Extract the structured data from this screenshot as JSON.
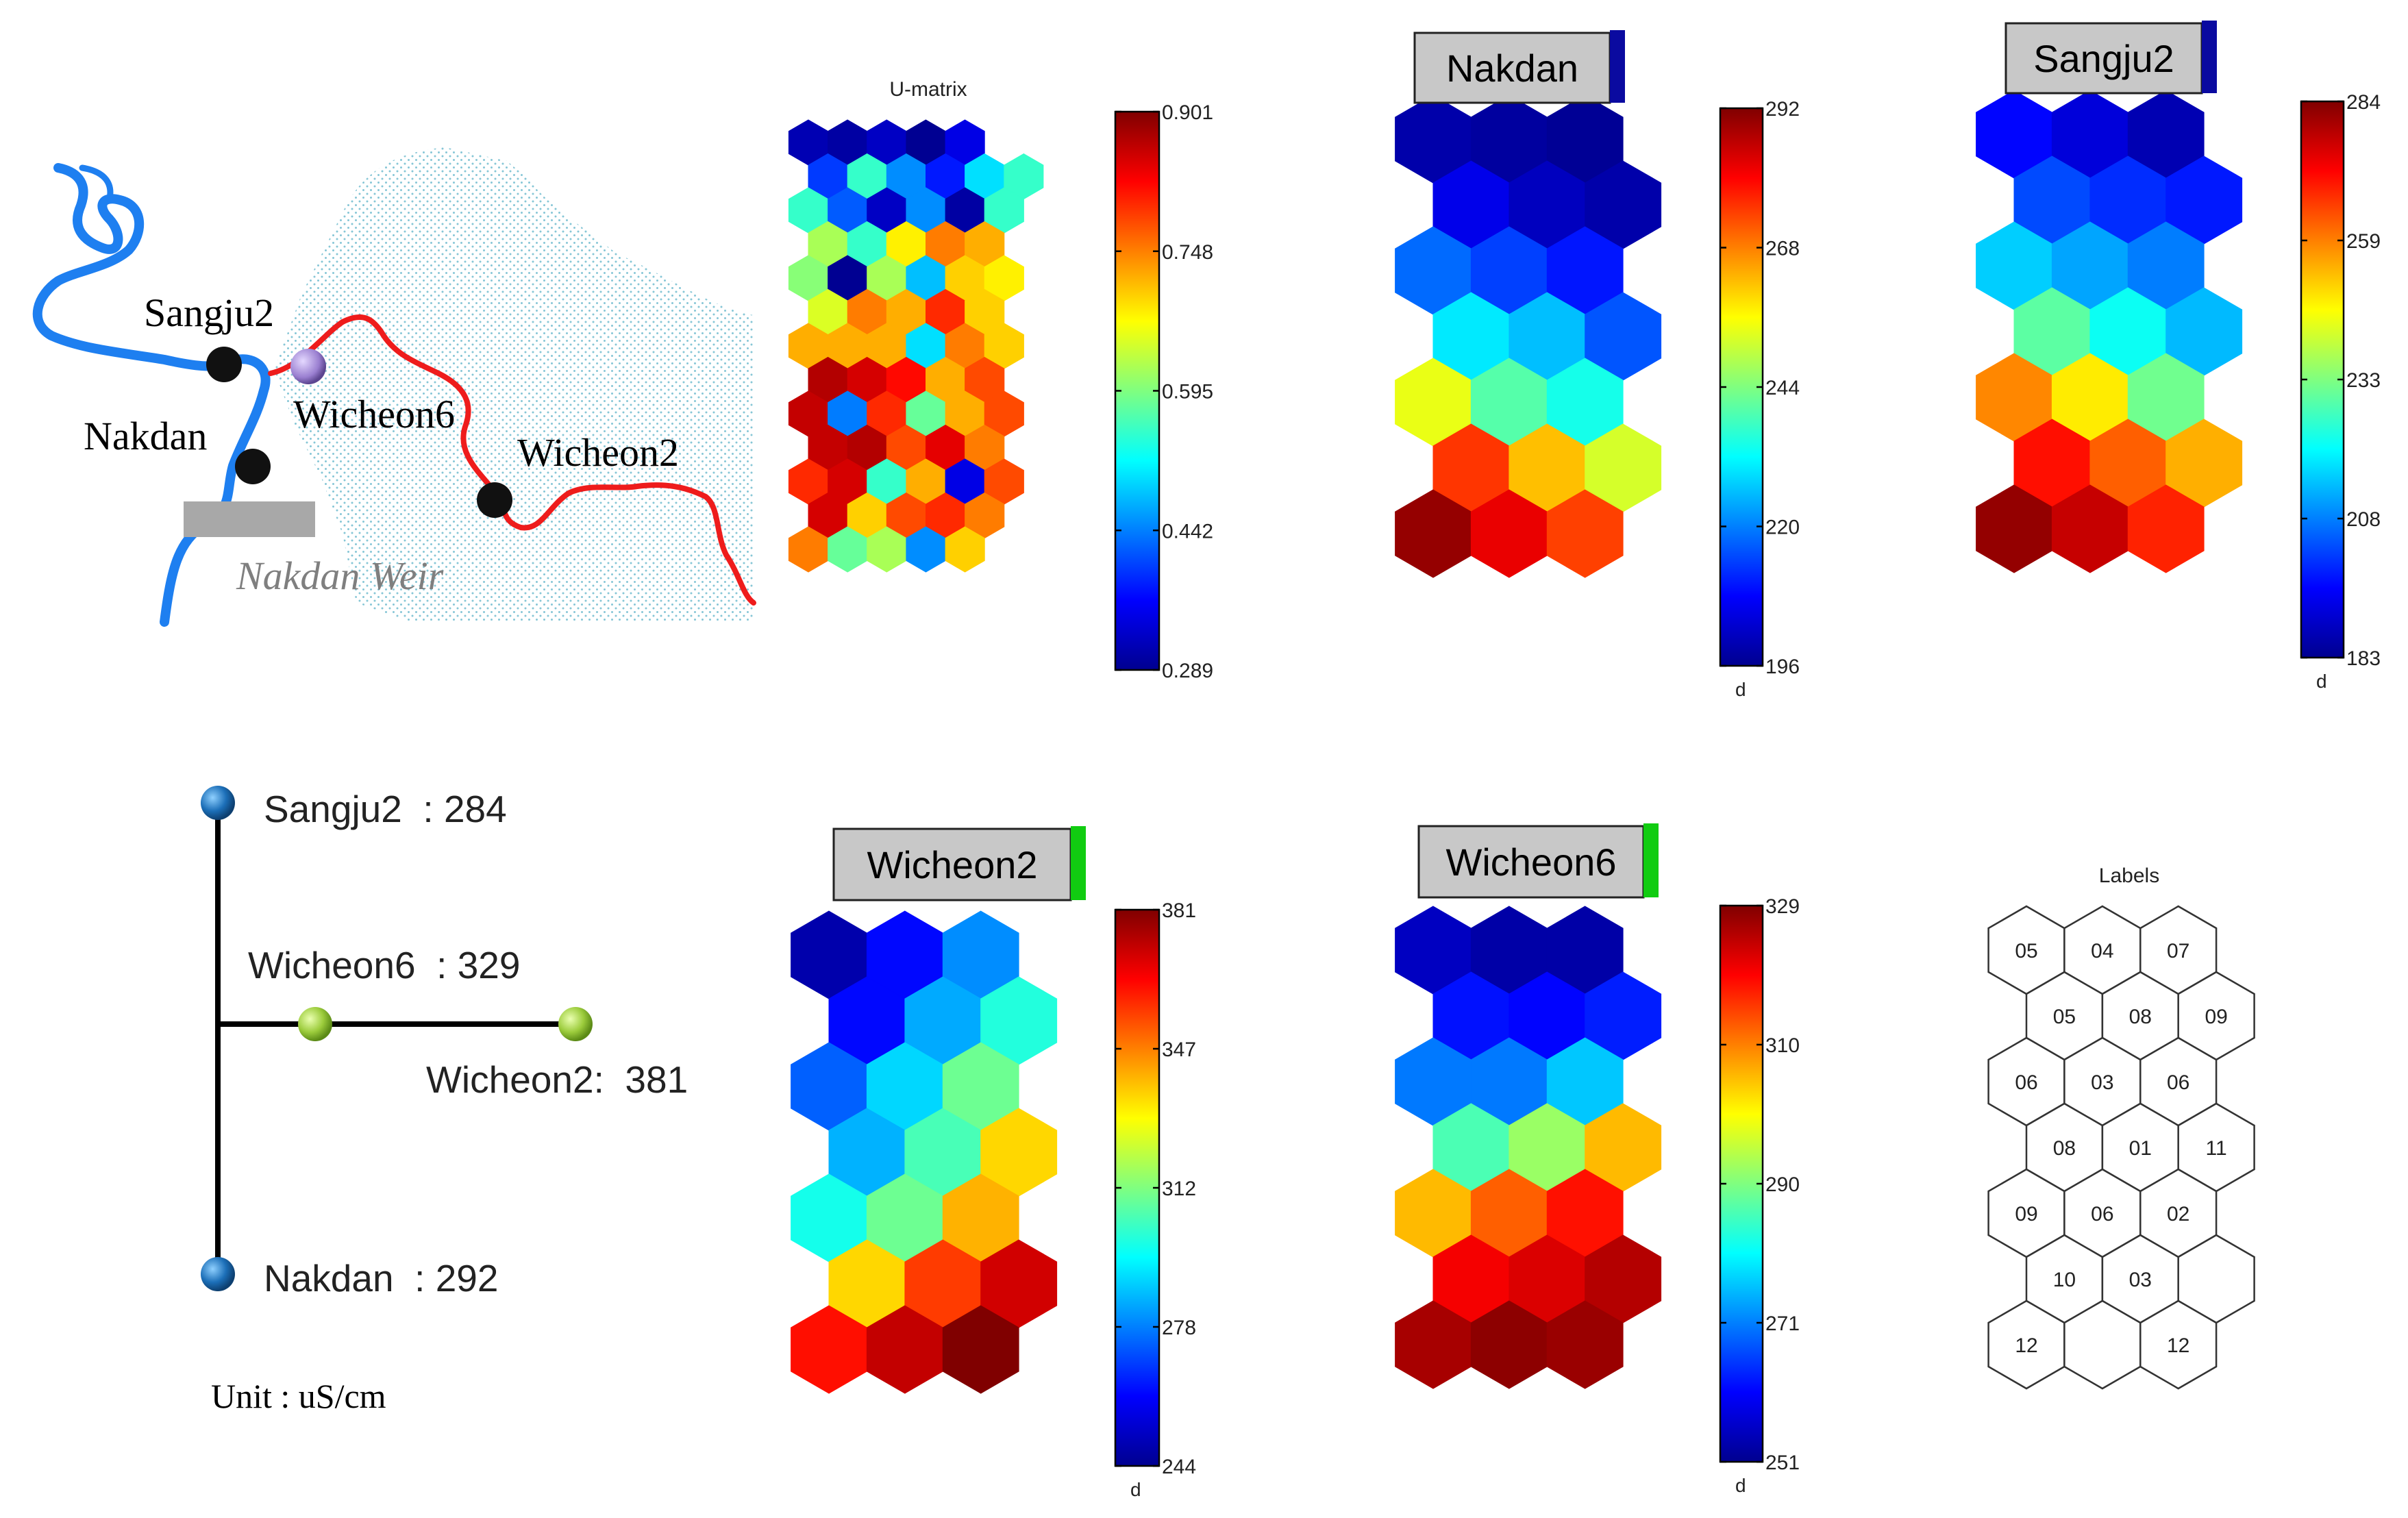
{
  "map": {
    "stations": [
      "Sangju2",
      "Wicheon6",
      "Nakdan",
      "Wicheon2"
    ],
    "weir_label": "Nakdan Weir",
    "colors": {
      "river": "#1e7ff0",
      "tributary": "#ee1c1c",
      "station": "#111111",
      "station_highlight": "#9a7fd0",
      "terrain": "#86c6d6",
      "weir": "#a8a8a8"
    }
  },
  "diagram": {
    "labels": [
      "Sangju2  : 284",
      "Wicheon6  : 329",
      "Wicheon2:  381",
      "Nakdan  : 292"
    ],
    "unit": "Unit : uS/cm",
    "node_colors": {
      "main": "#1c6fb8",
      "tributary": "#9ccc3c"
    }
  },
  "chart_data": [
    {
      "type": "heatmap",
      "name": "U-matrix",
      "title": "U-matrix",
      "grid": "hexagonal",
      "cols": 6,
      "rows": 13,
      "colorbar": {
        "min": 0.289,
        "max": 0.901,
        "ticks": [
          "0.901",
          "0.748",
          "0.595",
          "0.442",
          "0.289"
        ],
        "unit": ""
      },
      "values": [
        [
          0.32,
          0.31,
          0.33,
          0.3,
          0.35,
          null
        ],
        [
          0.4,
          0.55,
          0.45,
          0.38,
          0.5,
          0.55
        ],
        [
          0.55,
          0.42,
          0.33,
          0.45,
          0.31,
          0.55
        ],
        [
          0.62,
          0.55,
          0.68,
          0.75,
          0.72,
          null
        ],
        [
          0.6,
          0.3,
          0.62,
          0.48,
          0.7,
          0.68
        ],
        [
          0.65,
          0.75,
          0.72,
          0.8,
          0.7,
          null
        ],
        [
          0.72,
          0.72,
          0.72,
          0.5,
          0.75,
          0.7
        ],
        [
          0.87,
          0.85,
          0.82,
          0.72,
          0.78,
          null
        ],
        [
          0.86,
          0.44,
          0.8,
          0.58,
          0.72,
          0.78
        ],
        [
          0.86,
          0.87,
          0.78,
          0.84,
          0.75,
          null
        ],
        [
          0.8,
          0.85,
          0.55,
          0.72,
          0.35,
          0.78
        ],
        [
          0.85,
          0.7,
          0.78,
          0.8,
          0.75,
          null
        ],
        [
          0.75,
          0.58,
          0.62,
          0.45,
          0.7,
          null
        ]
      ]
    },
    {
      "type": "heatmap",
      "name": "Nakdan",
      "title": "Nakdan",
      "grid": "hexagonal",
      "cols": 3,
      "rows": 7,
      "colorbar": {
        "min": 196,
        "max": 292,
        "ticks": [
          "292",
          "268",
          "244",
          "220",
          "196"
        ],
        "unit": "d"
      },
      "values": [
        [
          200,
          199,
          198
        ],
        [
          206,
          202,
          200
        ],
        [
          218,
          214,
          210
        ],
        [
          230,
          226,
          216
        ],
        [
          254,
          240,
          234
        ],
        [
          275,
          262,
          252
        ],
        [
          290,
          282,
          274
        ]
      ]
    },
    {
      "type": "heatmap",
      "name": "Sangju2",
      "title": "Sangju2",
      "grid": "hexagonal",
      "cols": 3,
      "rows": 7,
      "colorbar": {
        "min": 183,
        "max": 284,
        "ticks": [
          "284",
          "259",
          "233",
          "208",
          "183"
        ],
        "unit": "d"
      },
      "values": [
        [
          196,
          192,
          188
        ],
        [
          203,
          200,
          198
        ],
        [
          216,
          212,
          208
        ],
        [
          230,
          222,
          214
        ],
        [
          258,
          248,
          232
        ],
        [
          270,
          262,
          254
        ],
        [
          282,
          277,
          268
        ]
      ]
    },
    {
      "type": "heatmap",
      "name": "Wicheon2",
      "title": "Wicheon2",
      "grid": "hexagonal",
      "cols": 3,
      "rows": 7,
      "colorbar": {
        "min": 244,
        "max": 381,
        "ticks": [
          "381",
          "347",
          "312",
          "278",
          "244"
        ],
        "unit": "d"
      },
      "values": [
        [
          250,
          262,
          280
        ],
        [
          262,
          284,
          300
        ],
        [
          274,
          290,
          310
        ],
        [
          285,
          305,
          335
        ],
        [
          298,
          310,
          340
        ],
        [
          335,
          356,
          370
        ],
        [
          362,
          372,
          381
        ]
      ]
    },
    {
      "type": "heatmap",
      "name": "Wicheon6",
      "title": "Wicheon6",
      "grid": "hexagonal",
      "cols": 3,
      "rows": 7,
      "colorbar": {
        "min": 251,
        "max": 329,
        "ticks": [
          "329",
          "310",
          "290",
          "271",
          "251"
        ],
        "unit": "d"
      },
      "values": [
        [
          256,
          254,
          254
        ],
        [
          262,
          261,
          263
        ],
        [
          270,
          270,
          276
        ],
        [
          286,
          292,
          305
        ],
        [
          305,
          312,
          318
        ],
        [
          320,
          322,
          325
        ],
        [
          326,
          328,
          327
        ]
      ]
    },
    {
      "type": "table",
      "name": "Labels",
      "title": "Labels",
      "grid": "hexagonal",
      "cols": 3,
      "rows": 7,
      "values": [
        [
          "05",
          "04",
          "07"
        ],
        [
          "05",
          "08",
          "09"
        ],
        [
          "06",
          "03",
          "06"
        ],
        [
          "08",
          "01",
          "11"
        ],
        [
          "09",
          "06",
          "02"
        ],
        [
          "10",
          "03",
          ""
        ],
        [
          "12",
          "",
          "12"
        ]
      ]
    }
  ],
  "title_badges": {
    "Nakdan": "#0a0aa0",
    "Sangju2": "#0a0aa0",
    "Wicheon2": "#11cc11",
    "Wicheon6": "#11cc11"
  }
}
